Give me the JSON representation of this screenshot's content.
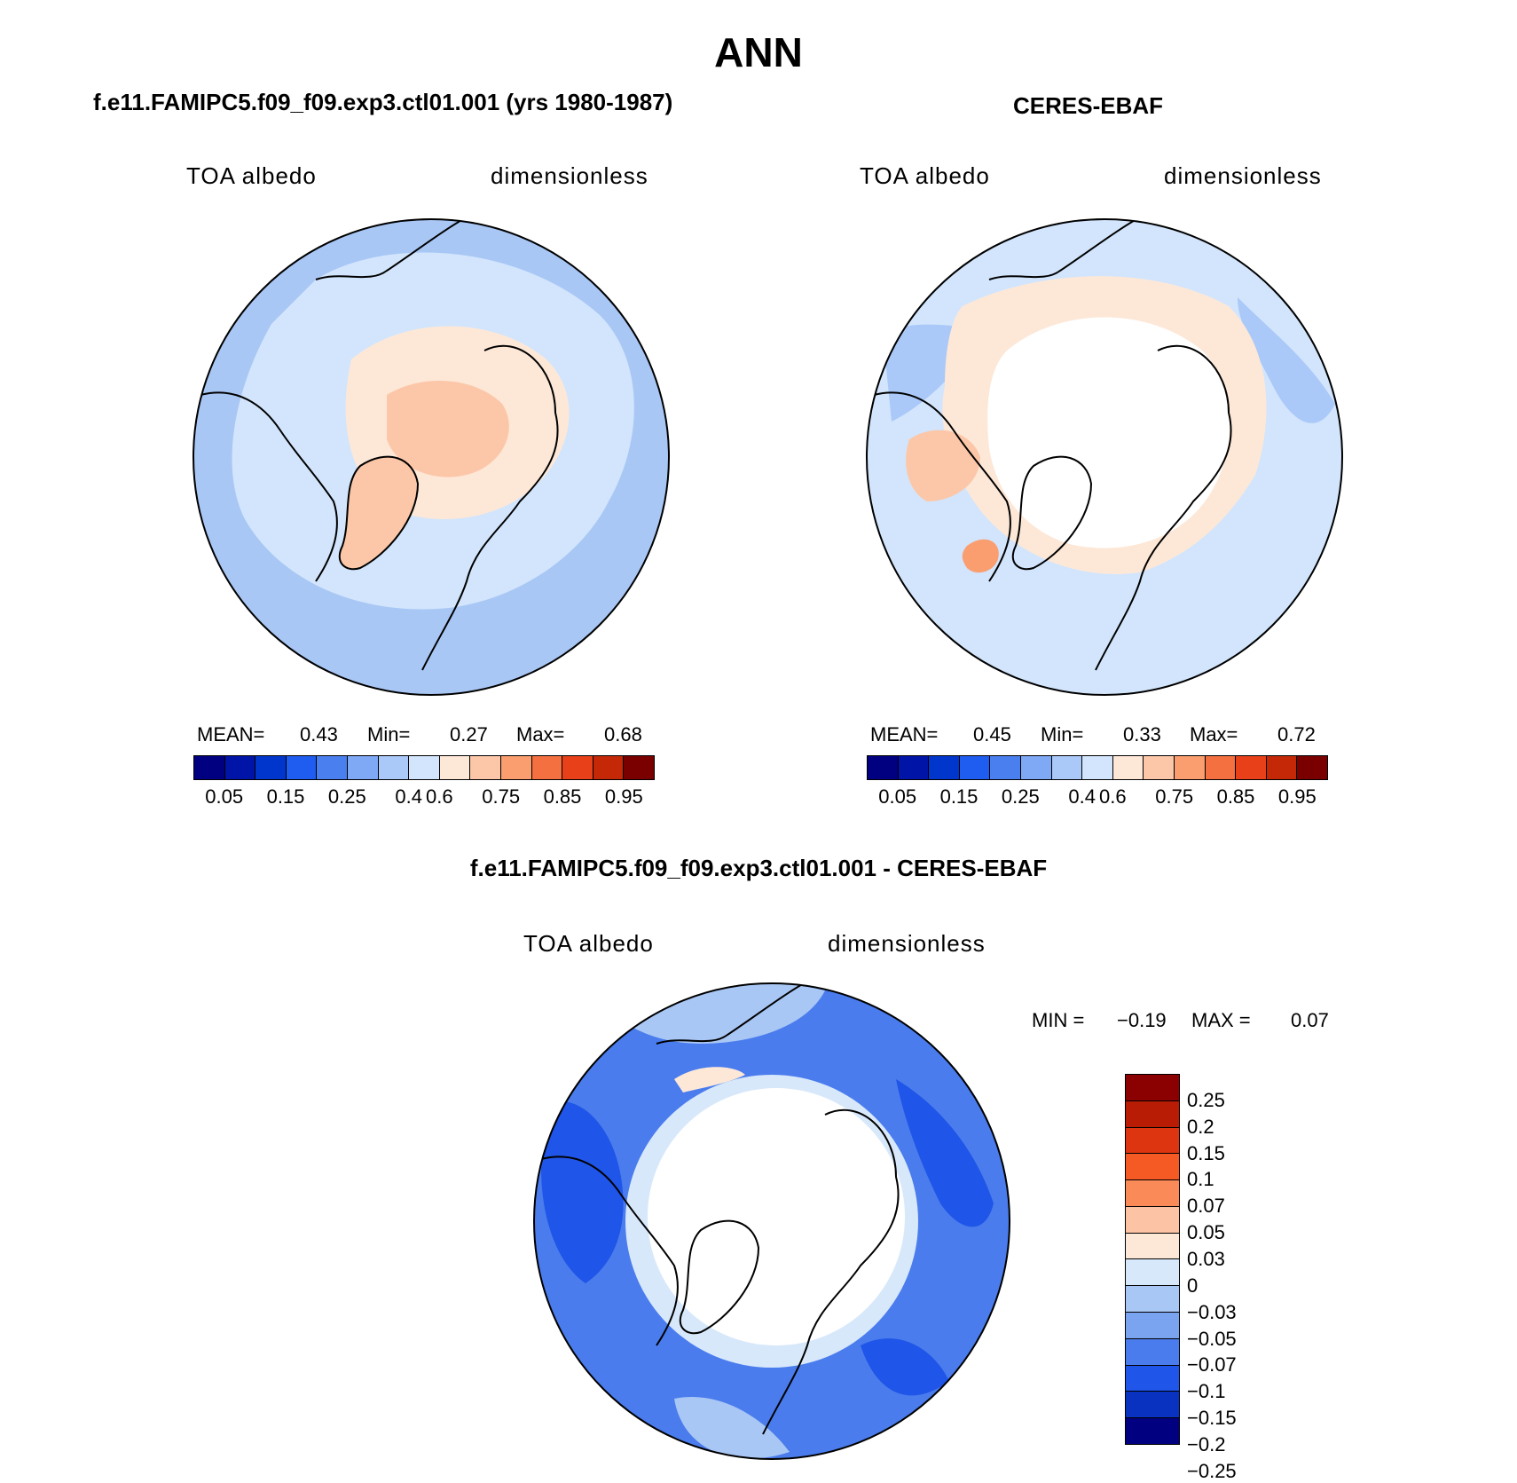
{
  "title": "ANN",
  "panels": [
    {
      "title": "f.e11.FAMIPC5.f09_f09.exp3.ctl01.001 (yrs 1980-1987)",
      "variable": "TOA albedo",
      "units": "dimensionless",
      "stats": {
        "mean_label": "MEAN=",
        "mean": "0.43",
        "min_label": "Min=",
        "min": "0.27",
        "max_label": "Max=",
        "max": "0.68"
      }
    },
    {
      "title": "CERES-EBAF",
      "variable": "TOA albedo",
      "units": "dimensionless",
      "stats": {
        "mean_label": "MEAN=",
        "mean": "0.45",
        "min_label": "Min=",
        "min": "0.33",
        "max_label": "Max=",
        "max": "0.72"
      }
    },
    {
      "title": "f.e11.FAMIPC5.f09_f09.exp3.ctl01.001 - CERES-EBAF",
      "variable": "TOA albedo",
      "units": "dimensionless",
      "stats": {
        "min_label": "MIN =",
        "min": "−0.19",
        "max_label": "MAX =",
        "max": "0.07"
      }
    }
  ],
  "colorbar_main": {
    "colors": [
      "#000080",
      "#0015a8",
      "#0036cc",
      "#1f5cf0",
      "#4a7ff0",
      "#7fa8f5",
      "#aac8f8",
      "#d2e5fc",
      "#fde8d8",
      "#fcc7a8",
      "#fa9e70",
      "#f57040",
      "#e84018",
      "#c42806",
      "#7a0000"
    ],
    "tick_labels": [
      "0.05",
      "0.15",
      "0.25",
      "0.4",
      "0.6",
      "0.75",
      "0.85",
      "0.95"
    ]
  },
  "colorbar_diff": {
    "colors_top_to_bottom": [
      "#8b0000",
      "#b81c05",
      "#dd3510",
      "#f55a25",
      "#fa8a58",
      "#fcc4a4",
      "#fde8d8",
      "#d8e8fb",
      "#a9c7f5",
      "#7aa4f0",
      "#4a7ced",
      "#1f55e8",
      "#0a32c0",
      "#000080"
    ],
    "tick_labels_top_to_bottom": [
      "0.25",
      "0.2",
      "0.15",
      "0.1",
      "0.07",
      "0.05",
      "0.03",
      "0",
      "−0.03",
      "−0.05",
      "−0.07",
      "−0.1",
      "−0.15",
      "−0.2",
      "−0.25"
    ]
  },
  "map_colors": {
    "model_background": "#a9c7f5",
    "model_light": "#d2e5fc",
    "model_warm1": "#fde8d8",
    "model_warm2": "#fcc7a8",
    "obs_background": "#d2e5fc",
    "obs_mid": "#aac8f8",
    "obs_warm1": "#fde8d8",
    "obs_warm2": "#fcc7a8",
    "obs_warm3": "#fa9e70",
    "obs_missing": "#ffffff",
    "diff_deep": "#1f55e8",
    "diff_mid": "#4a7ced",
    "diff_light": "#a9c7f5",
    "diff_pale": "#d8e8fb",
    "diff_warm": "#fde8d8",
    "diff_missing": "#ffffff"
  }
}
